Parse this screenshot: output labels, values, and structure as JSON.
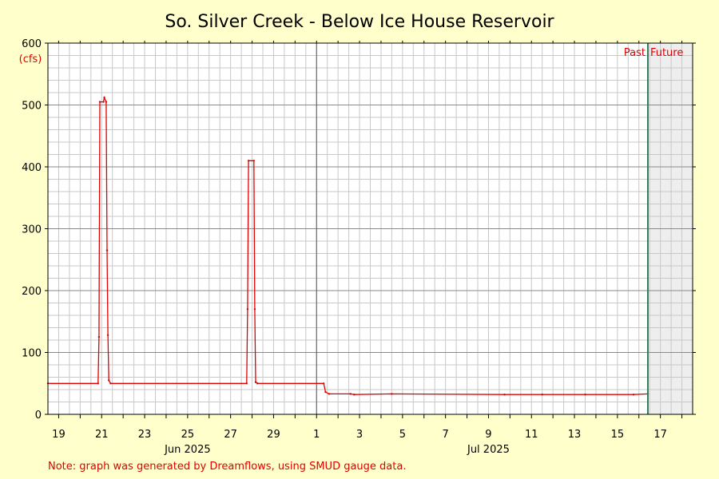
{
  "chart_data": {
    "type": "line",
    "title": "So. Silver Creek - Below Ice House Reservoir",
    "ylabel": "(cfs)",
    "xlabel": "",
    "ylim": [
      0,
      600
    ],
    "yticks": [
      0,
      100,
      200,
      300,
      400,
      500,
      600
    ],
    "grid": true,
    "x_axis": {
      "start": "2025-06-18T12:00",
      "end": "2025-07-18T12:00",
      "day_labels": [
        {
          "date": "2025-06-19",
          "label": "19"
        },
        {
          "date": "2025-06-21",
          "label": "21"
        },
        {
          "date": "2025-06-23",
          "label": "23"
        },
        {
          "date": "2025-06-25",
          "label": "25"
        },
        {
          "date": "2025-06-27",
          "label": "27"
        },
        {
          "date": "2025-06-29",
          "label": "29"
        },
        {
          "date": "2025-07-01",
          "label": "1"
        },
        {
          "date": "2025-07-03",
          "label": "3"
        },
        {
          "date": "2025-07-05",
          "label": "5"
        },
        {
          "date": "2025-07-07",
          "label": "7"
        },
        {
          "date": "2025-07-09",
          "label": "9"
        },
        {
          "date": "2025-07-11",
          "label": "11"
        },
        {
          "date": "2025-07-13",
          "label": "13"
        },
        {
          "date": "2025-07-15",
          "label": "15"
        },
        {
          "date": "2025-07-17",
          "label": "17"
        }
      ],
      "month_labels": [
        {
          "date": "2025-06-25",
          "label": "Jun 2025"
        },
        {
          "date": "2025-07-09",
          "label": "Jul 2025"
        }
      ],
      "month_divider": "2025-07-01"
    },
    "series": [
      {
        "color": "#e00000",
        "points": [
          [
            "2025-06-18T12:00",
            50
          ],
          [
            "2025-06-20T20:00",
            50
          ],
          [
            "2025-06-20T21:00",
            125
          ],
          [
            "2025-06-20T22:00",
            505
          ],
          [
            "2025-06-21T02:00",
            505
          ],
          [
            "2025-06-21T03:00",
            512
          ],
          [
            "2025-06-21T05:00",
            505
          ],
          [
            "2025-06-21T06:00",
            265
          ],
          [
            "2025-06-21T07:00",
            128
          ],
          [
            "2025-06-21T08:00",
            55
          ],
          [
            "2025-06-21T10:00",
            50
          ],
          [
            "2025-06-27T18:00",
            50
          ],
          [
            "2025-06-27T19:00",
            170
          ],
          [
            "2025-06-27T20:00",
            410
          ],
          [
            "2025-06-28T02:00",
            410
          ],
          [
            "2025-06-28T03:00",
            170
          ],
          [
            "2025-06-28T04:00",
            52
          ],
          [
            "2025-06-28T06:00",
            50
          ],
          [
            "2025-07-01T08:00",
            50
          ],
          [
            "2025-07-01T10:00",
            36
          ],
          [
            "2025-07-01T14:00",
            33
          ],
          [
            "2025-07-02T14:00",
            33
          ],
          [
            "2025-07-02T18:00",
            32
          ],
          [
            "2025-07-04T12:00",
            33
          ],
          [
            "2025-07-09T18:00",
            32
          ],
          [
            "2025-07-11T12:00",
            32
          ],
          [
            "2025-07-13T12:00",
            32
          ],
          [
            "2025-07-15T18:00",
            32
          ],
          [
            "2025-07-16T10:00",
            33
          ]
        ]
      }
    ],
    "now_marker": {
      "date": "2025-07-16T10:00",
      "color": "#2e7d5b",
      "left_label": "Past",
      "right_label": "Future"
    },
    "future_shade": "#eeeeee"
  },
  "colors": {
    "background": "#ffffcc",
    "plot_bg": "#ffffff",
    "minor_grid": "#c8c8c8",
    "major_grid": "#8a8a8a",
    "line": "#e00000"
  },
  "note": "Note: graph was generated by Dreamflows, using SMUD gauge data."
}
